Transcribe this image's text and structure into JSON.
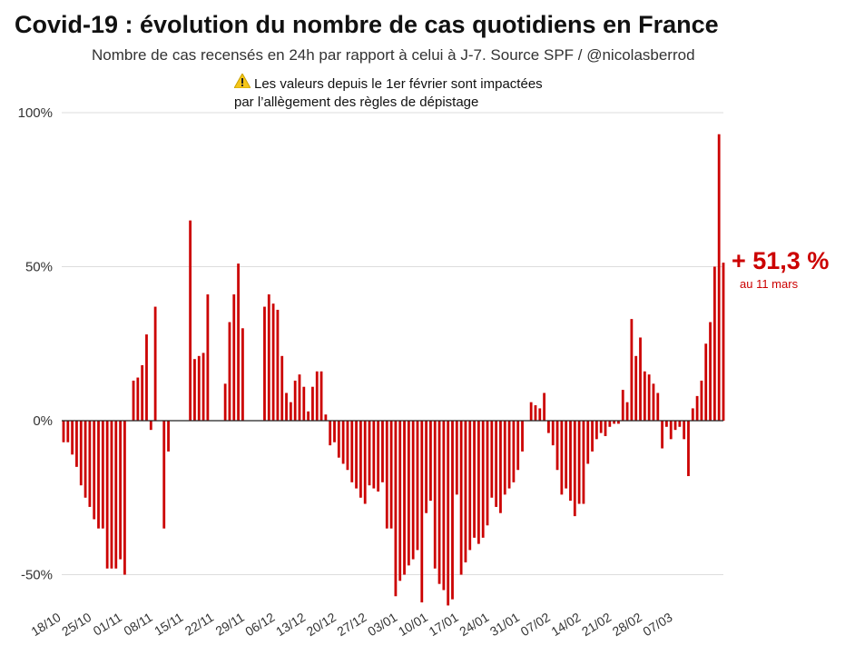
{
  "title": "Covid-19 : évolution du nombre de cas quotidiens en France",
  "subtitle": "Nombre de cas recensés en 24h par rapport à celui à J-7. Source SPF / @nicolasberrod",
  "note": {
    "line1": "Les valeurs depuis le 1er février sont impactées",
    "line2": "par l’allègement des règles de dépistage"
  },
  "callout": {
    "value": "+ 51,3 %",
    "date": "au 11 mars"
  },
  "colors": {
    "bar": "#cc0000",
    "grid": "#dddddd",
    "zero_line": "#222222",
    "warning": "#f5c518"
  },
  "chart_data": {
    "type": "bar",
    "title": "Covid-19 : évolution du nombre de cas quotidiens en France",
    "xlabel": "",
    "ylabel": "",
    "ylim": [
      -60,
      100
    ],
    "y_ticks": [
      {
        "value": 100,
        "label": "100%"
      },
      {
        "value": 50,
        "label": "50%"
      },
      {
        "value": 0,
        "label": "0%"
      },
      {
        "value": -50,
        "label": "-50%"
      }
    ],
    "start_date": "18/10",
    "x_tick_labels": [
      "18/10",
      "25/10",
      "01/11",
      "08/11",
      "15/11",
      "22/11",
      "29/11",
      "06/12",
      "13/12",
      "20/12",
      "27/12",
      "03/01",
      "10/01",
      "17/01",
      "24/01",
      "31/01",
      "07/02",
      "14/02",
      "21/02",
      "28/02",
      "07/03"
    ],
    "values": [
      -7,
      -7,
      -11,
      -15,
      -21,
      -25,
      -28,
      -32,
      -35,
      -35,
      -48,
      -48,
      -48,
      -45,
      -50,
      0,
      13,
      14,
      18,
      28,
      -3,
      37,
      0,
      -35,
      -10,
      0,
      0,
      0,
      0,
      65,
      20,
      21,
      22,
      41,
      0,
      0,
      0,
      12,
      32,
      41,
      51,
      30,
      0,
      0,
      0,
      0,
      37,
      41,
      38,
      36,
      21,
      9,
      6,
      13,
      15,
      11,
      3,
      11,
      16,
      16,
      2,
      -8,
      -7,
      -12,
      -14,
      -16,
      -20,
      -22,
      -25,
      -27,
      -21,
      -22,
      -23,
      -20,
      -35,
      -35,
      -57,
      -52,
      -50,
      -47,
      -45,
      -42,
      -59,
      -30,
      -26,
      -48,
      -53,
      -55,
      -60,
      -58,
      -24,
      -50,
      -46,
      -42,
      -38,
      -40,
      -38,
      -34,
      -25,
      -28,
      -30,
      -24,
      -22,
      -20,
      -16,
      -10,
      0,
      6,
      5,
      4,
      9,
      -4,
      -8,
      -16,
      -24,
      -22,
      -26,
      -31,
      -27,
      -27,
      -14,
      -10,
      -6,
      -4,
      -5,
      -2,
      -1,
      -1,
      10,
      6,
      33,
      21,
      27,
      16,
      15,
      12,
      9,
      -9,
      -2,
      -6,
      -3,
      -2,
      -6,
      -18,
      4,
      8,
      13,
      25,
      32,
      50,
      93,
      51.3
    ]
  }
}
